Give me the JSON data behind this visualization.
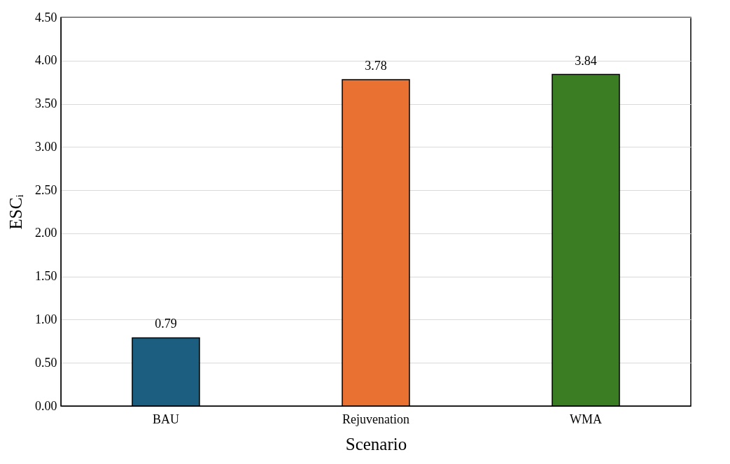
{
  "chart_data": {
    "type": "bar",
    "xlabel": "Scenario",
    "ylabel": "ESCᵢ",
    "categories": [
      "BAU",
      "Rejuvenation",
      "WMA"
    ],
    "values": [
      0.79,
      3.78,
      3.84
    ],
    "colors": [
      "#1b5e80",
      "#e97132",
      "#3b7d23"
    ],
    "ylim": [
      0,
      4.5
    ],
    "yticks": [
      {
        "value": 0,
        "label": "0.00"
      },
      {
        "value": 0.5,
        "label": "0.50"
      },
      {
        "value": 1,
        "label": "1.00"
      },
      {
        "value": 1.5,
        "label": "1.50"
      },
      {
        "value": 2,
        "label": "2.00"
      },
      {
        "value": 2.5,
        "label": "2.50"
      },
      {
        "value": 3,
        "label": "3.00"
      },
      {
        "value": 3.5,
        "label": "3.50"
      },
      {
        "value": 4,
        "label": "4.00"
      },
      {
        "value": 4.5,
        "label": "4.50"
      }
    ],
    "grid": "y",
    "data_labels": true,
    "legend": false
  }
}
